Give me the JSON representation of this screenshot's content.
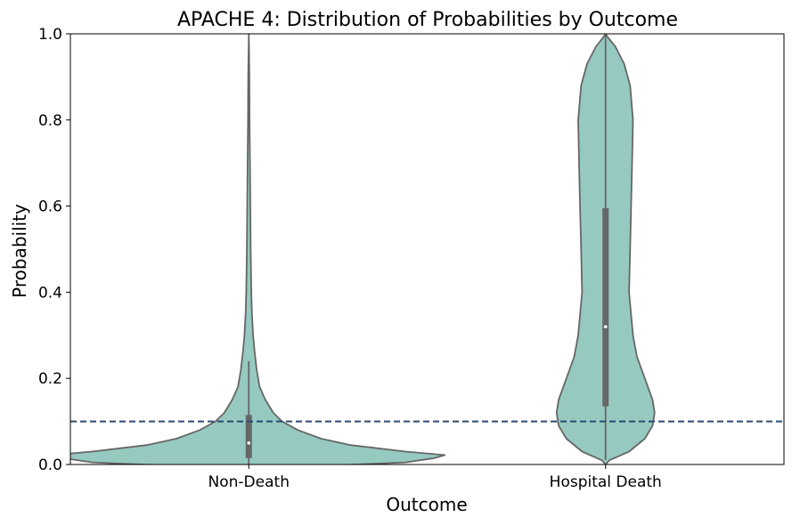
{
  "chart_data": {
    "type": "violin",
    "title": "APACHE 4: Distribution of Probabilities by Outcome",
    "xlabel": "Outcome",
    "ylabel": "Probability",
    "categories": [
      "Non-Death",
      "Hospital Death"
    ],
    "ylim": [
      0,
      1.0
    ],
    "yticks": [
      "0.0",
      "0.2",
      "0.4",
      "0.6",
      "0.8",
      "1.0"
    ],
    "threshold": 0.1,
    "violin_color": "#96cac0",
    "edge_color": "#666666",
    "threshold_color": "#2b4a6f",
    "violins": [
      {
        "category": "Non-Death",
        "profile": [
          [
            -0.01,
            0.0
          ],
          [
            0.0,
            0.55
          ],
          [
            0.005,
            0.8
          ],
          [
            0.015,
            0.95
          ],
          [
            0.022,
            1.0
          ],
          [
            0.03,
            0.8
          ],
          [
            0.045,
            0.52
          ],
          [
            0.06,
            0.37
          ],
          [
            0.08,
            0.25
          ],
          [
            0.1,
            0.17
          ],
          [
            0.12,
            0.125
          ],
          [
            0.15,
            0.085
          ],
          [
            0.18,
            0.055
          ],
          [
            0.22,
            0.04
          ],
          [
            0.26,
            0.03
          ],
          [
            0.3,
            0.022
          ],
          [
            0.35,
            0.016
          ],
          [
            0.4,
            0.013
          ],
          [
            0.5,
            0.01
          ],
          [
            0.6,
            0.008
          ],
          [
            0.7,
            0.006
          ],
          [
            0.8,
            0.004
          ],
          [
            0.9,
            0.003
          ],
          [
            1.0,
            0.0
          ]
        ],
        "q1": 0.015,
        "median": 0.05,
        "q3": 0.115,
        "whisker_low": 0.0,
        "whisker_high": 0.24
      },
      {
        "category": "Hospital Death",
        "profile": [
          [
            0.0,
            0.0
          ],
          [
            0.01,
            0.02
          ],
          [
            0.03,
            0.12
          ],
          [
            0.06,
            0.2
          ],
          [
            0.09,
            0.24
          ],
          [
            0.12,
            0.25
          ],
          [
            0.15,
            0.24
          ],
          [
            0.2,
            0.2
          ],
          [
            0.25,
            0.16
          ],
          [
            0.3,
            0.14
          ],
          [
            0.4,
            0.12
          ],
          [
            0.5,
            0.125
          ],
          [
            0.6,
            0.13
          ],
          [
            0.7,
            0.135
          ],
          [
            0.8,
            0.14
          ],
          [
            0.88,
            0.125
          ],
          [
            0.93,
            0.095
          ],
          [
            0.97,
            0.05
          ],
          [
            0.99,
            0.015
          ],
          [
            1.0,
            0.0
          ]
        ],
        "q1": 0.135,
        "median": 0.32,
        "q3": 0.595,
        "whisker_low": 0.01,
        "whisker_high": 1.0
      }
    ]
  }
}
